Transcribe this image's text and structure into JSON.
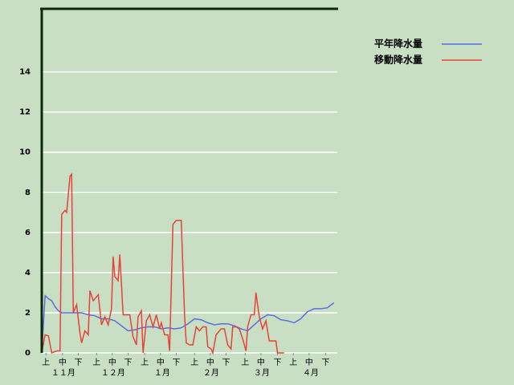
{
  "chart_data": {
    "type": "line",
    "xlim": [
      0,
      178
    ],
    "ylim": [
      0,
      17.1
    ],
    "yticks": [
      0,
      2,
      4,
      6,
      8,
      10,
      12,
      14
    ],
    "grid": true,
    "xticks": [
      {
        "value": 2.5,
        "label": "上"
      },
      {
        "value": 12.5,
        "label": "中"
      },
      {
        "value": 22,
        "label": "下"
      },
      {
        "value": 33,
        "label": "上"
      },
      {
        "value": 42.5,
        "label": "中"
      },
      {
        "value": 52,
        "label": "下"
      },
      {
        "value": 62,
        "label": "上"
      },
      {
        "value": 71.5,
        "label": "中"
      },
      {
        "value": 81,
        "label": "下"
      },
      {
        "value": 92,
        "label": "上"
      },
      {
        "value": 101.5,
        "label": "中"
      },
      {
        "value": 111,
        "label": "下"
      },
      {
        "value": 122.5,
        "label": "上"
      },
      {
        "value": 132,
        "label": "中"
      },
      {
        "value": 142,
        "label": "下"
      },
      {
        "value": 151.5,
        "label": "上"
      },
      {
        "value": 161,
        "label": "中"
      },
      {
        "value": 171,
        "label": "下"
      }
    ],
    "month_labels": [
      {
        "value": 13,
        "label": "１１月"
      },
      {
        "value": 43,
        "label": "１２月"
      },
      {
        "value": 72.5,
        "label": "１月"
      },
      {
        "value": 102,
        "label": "２月"
      },
      {
        "value": 132.5,
        "label": "３月"
      },
      {
        "value": 162,
        "label": "４月"
      }
    ],
    "series": [
      {
        "name": "平年降水量",
        "color": "#5a6ee0",
        "x": [
          0,
          2,
          4,
          6,
          8,
          10,
          12,
          16,
          20,
          24,
          28,
          32,
          36,
          40,
          44,
          48,
          52,
          56,
          60,
          64,
          68,
          72,
          76,
          80,
          84,
          88,
          92,
          96,
          100,
          104,
          108,
          112,
          116,
          120,
          124,
          128,
          132,
          136,
          140,
          144,
          148,
          152,
          156,
          160,
          164,
          168,
          172,
          176
        ],
        "values": [
          0,
          2.85,
          2.7,
          2.6,
          2.3,
          2.1,
          2.0,
          2.0,
          2.0,
          2.0,
          1.9,
          1.85,
          1.7,
          1.7,
          1.6,
          1.35,
          1.1,
          1.15,
          1.25,
          1.3,
          1.3,
          1.2,
          1.25,
          1.2,
          1.25,
          1.45,
          1.7,
          1.65,
          1.5,
          1.4,
          1.45,
          1.45,
          1.35,
          1.2,
          1.1,
          1.4,
          1.7,
          1.9,
          1.85,
          1.65,
          1.6,
          1.5,
          1.7,
          2.05,
          2.2,
          2.2,
          2.25,
          2.5
        ]
      },
      {
        "name": "移動降水量",
        "color": "#e8423a",
        "x": [
          0,
          2,
          4,
          6,
          9,
          11,
          12,
          14,
          15,
          17,
          18,
          19,
          21,
          23,
          24,
          26,
          28,
          29,
          31,
          34,
          36,
          38,
          40,
          42,
          43,
          44,
          46,
          47,
          49,
          51,
          53,
          55,
          57,
          58,
          60,
          61,
          63,
          65,
          67,
          69,
          71,
          72,
          74,
          76,
          77,
          79,
          81,
          84,
          86,
          87,
          89,
          91,
          93,
          95,
          97,
          99,
          100,
          102,
          103,
          105,
          108,
          110,
          112,
          114,
          115,
          117,
          119,
          121,
          123,
          124,
          126,
          128,
          129,
          131,
          133,
          135,
          137,
          139,
          141,
          142,
          146
        ],
        "values": [
          0,
          0.9,
          0.85,
          0,
          0.1,
          0.1,
          6.9,
          7.1,
          7.0,
          8.8,
          8.9,
          2.0,
          2.4,
          1.0,
          0.5,
          1.1,
          0.9,
          3.1,
          2.6,
          2.9,
          1.4,
          1.8,
          1.4,
          2.2,
          4.8,
          3.8,
          3.6,
          4.9,
          1.9,
          1.9,
          1.9,
          0.8,
          0.4,
          1.8,
          2.1,
          0,
          1.6,
          1.9,
          1.3,
          1.9,
          1.2,
          1.5,
          0.9,
          0.9,
          0.1,
          6.4,
          6.6,
          6.6,
          1.9,
          0.5,
          0.4,
          0.4,
          1.3,
          1.1,
          1.3,
          1.3,
          0.3,
          0.2,
          0,
          0.9,
          1.2,
          1.2,
          0.4,
          0.2,
          1.3,
          1.3,
          1.2,
          0.7,
          0.1,
          1.3,
          1.9,
          1.9,
          3.0,
          1.8,
          1.2,
          1.6,
          0.6,
          0.6,
          0.6,
          0,
          0
        ]
      }
    ]
  }
}
